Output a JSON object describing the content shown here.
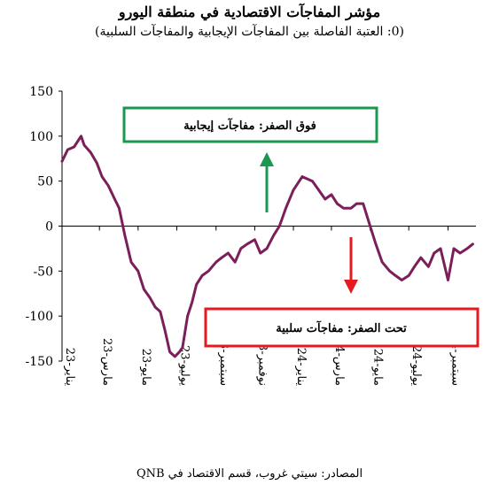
{
  "title": "مؤشر المفاجآت الاقتصادية في منطقة اليورو",
  "subtitle": "(0: العتبة الفاصلة بين المفاجآت الإيجابية والمفاجآت السلبية)",
  "source": "المصادر: سيتي غروب، قسم الاقتصاد في QNB",
  "annotations": {
    "positive": "فوق الصفر: مفاجآت إيجابية",
    "negative": "تحت الصفر: مفاجآت سلبية",
    "positive_color": "#1a9850",
    "negative_color": "#e41a1c"
  },
  "chart_data": {
    "type": "line",
    "title": "مؤشر المفاجآت الاقتصادية في منطقة اليورو",
    "ylim": [
      -150,
      150
    ],
    "yticks": [
      150,
      100,
      50,
      0,
      -50,
      -100,
      -150
    ],
    "xlim": [
      "2023-01-01",
      "2024-10-15"
    ],
    "xtick_labels": [
      "يناير-23",
      "مارس-23",
      "مايو-23",
      "يوليو-23",
      "سبتمبر-23",
      "نوفمبر-23",
      "يناير-24",
      "مارس-24",
      "مايو-24",
      "يوليو-24",
      "سبتمبر-24"
    ],
    "xticks": [
      "2023-01-01",
      "2023-03-01",
      "2023-05-01",
      "2023-07-01",
      "2023-09-01",
      "2023-11-01",
      "2024-01-01",
      "2024-03-01",
      "2024-05-01",
      "2024-07-01",
      "2024-09-01"
    ],
    "line_color": "#7b1f5a",
    "series": [
      {
        "x": [
          "2023-01-01",
          "2023-01-10",
          "2023-01-20",
          "2023-01-31",
          "2023-02-05",
          "2023-02-15",
          "2023-02-25",
          "2023-03-05",
          "2023-03-15",
          "2023-03-25",
          "2023-04-01",
          "2023-04-10",
          "2023-04-20",
          "2023-05-01",
          "2023-05-10",
          "2023-05-20",
          "2023-05-28",
          "2023-06-05",
          "2023-06-12",
          "2023-06-20",
          "2023-06-28",
          "2023-07-05",
          "2023-07-10",
          "2023-07-18",
          "2023-07-25",
          "2023-08-01",
          "2023-08-10",
          "2023-08-20",
          "2023-09-01",
          "2023-09-10",
          "2023-09-20",
          "2023-10-01",
          "2023-10-10",
          "2023-10-20",
          "2023-11-01",
          "2023-11-10",
          "2023-11-20",
          "2023-12-01",
          "2023-12-10",
          "2023-12-20",
          "2024-01-01",
          "2024-01-15",
          "2024-01-31",
          "2024-02-10",
          "2024-02-20",
          "2024-03-01",
          "2024-03-10",
          "2024-03-20",
          "2024-04-01",
          "2024-04-10",
          "2024-04-20",
          "2024-05-01",
          "2024-05-10",
          "2024-05-20",
          "2024-06-01",
          "2024-06-10",
          "2024-06-20",
          "2024-07-01",
          "2024-07-10",
          "2024-07-20",
          "2024-08-01",
          "2024-08-10",
          "2024-08-20",
          "2024-09-01",
          "2024-09-10",
          "2024-09-20",
          "2024-10-01",
          "2024-10-10"
        ],
        "y": [
          72,
          85,
          88,
          100,
          90,
          82,
          70,
          55,
          45,
          30,
          20,
          -10,
          -40,
          -50,
          -70,
          -80,
          -90,
          -95,
          -115,
          -140,
          -145,
          -140,
          -135,
          -100,
          -85,
          -65,
          -55,
          -50,
          -40,
          -35,
          -30,
          -40,
          -25,
          -20,
          -15,
          -30,
          -25,
          -10,
          0,
          20,
          40,
          55,
          50,
          40,
          30,
          35,
          25,
          20,
          20,
          25,
          25,
          0,
          -20,
          -40,
          -50,
          -55,
          -60,
          -55,
          -45,
          -35,
          -45,
          -30,
          -25,
          -60,
          -25,
          -30,
          -25,
          -20
        ]
      }
    ]
  }
}
